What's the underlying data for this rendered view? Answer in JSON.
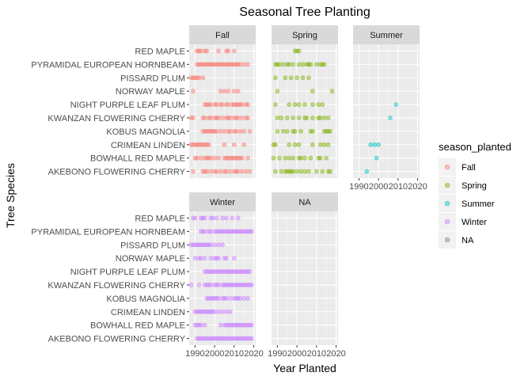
{
  "chart_data": {
    "type": "scatter",
    "title": "Seasonal Tree Planting",
    "xlabel": "Year Planted",
    "ylabel": "Tree Species",
    "xlim": [
      1987,
      2021
    ],
    "x_ticks": [
      1990,
      2000,
      2010,
      2020
    ],
    "categories": [
      "RED MAPLE",
      "PYRAMIDAL EUROPEAN HORNBEAM",
      "PISSARD PLUM",
      "NORWAY MAPLE",
      "NIGHT PURPLE LEAF PLUM",
      "KWANZAN FLOWERING CHERRY",
      "KOBUS MAGNOLIA",
      "CRIMEAN LINDEN",
      "BOWHALL RED MAPLE",
      "AKEBONO FLOWERING CHERRY"
    ],
    "legend": {
      "title": "season_planted",
      "placement": "right",
      "entries": [
        {
          "name": "Fall",
          "color": "#F8766D"
        },
        {
          "name": "Spring",
          "color": "#7CAE00"
        },
        {
          "name": "Summer",
          "color": "#00BFC4"
        },
        {
          "name": "Winter",
          "color": "#C77CFF"
        },
        {
          "name": "NA",
          "color": "#7F7F7F"
        }
      ]
    },
    "grid": true,
    "panels": [
      {
        "name": "Fall",
        "color": "#F8766D",
        "points": {
          "RED MAPLE": [
            1991,
            1992,
            1993,
            1995,
            1996,
            2002,
            2006,
            2007,
            2010
          ],
          "PYRAMIDAL EUROPEAN HORNBEAM": [
            1991,
            1992,
            1993,
            1994,
            1995,
            1996,
            1997,
            1998,
            1999,
            2000,
            2001,
            2002,
            2003,
            2004,
            2005,
            2006,
            2007,
            2008,
            2009,
            2010,
            2011,
            2012,
            2013,
            2015,
            2017
          ],
          "PISSARD PLUM": [
            1988,
            1989,
            1990,
            1991,
            1992,
            1994
          ],
          "NORWAY MAPLE": [
            1989,
            2003,
            2005,
            2007,
            2010,
            2012
          ],
          "NIGHT PURPLE LEAF PLUM": [
            1995,
            1996,
            1997,
            1998,
            2000,
            2001,
            2003,
            2004,
            2006,
            2007,
            2009,
            2010,
            2011,
            2012,
            2013,
            2014,
            2016,
            2017
          ],
          "KWANZAN FLOWERING CHERRY": [
            1988,
            1989,
            1994,
            1995,
            1997,
            1998,
            2000,
            2001,
            2002,
            2004,
            2006,
            2007,
            2008,
            2010,
            2011,
            2012,
            2014,
            2016,
            2017
          ],
          "KOBUS MAGNOLIA": [
            1994,
            1995,
            1996,
            1997,
            1998,
            1999,
            2000,
            2001,
            2003,
            2005,
            2007,
            2008,
            2010,
            2011,
            2013,
            2015,
            2018
          ],
          "CRIMEAN LINDEN": [
            1988,
            1989,
            1990,
            1991,
            1992,
            1993,
            1994,
            1995,
            1996,
            1997,
            2005,
            2010,
            2015
          ],
          "BOWHALL RED MAPLE": [
            1990,
            1991,
            1993,
            1995,
            1996,
            1997,
            1998,
            2000,
            2002,
            2005,
            2006,
            2007,
            2008,
            2009,
            2010,
            2011,
            2012,
            2013,
            2014,
            2017
          ],
          "AKEBONO FLOWERING CHERRY": [
            1989,
            1994,
            1995,
            1996,
            1998,
            2000,
            2001,
            2003,
            2005,
            2006,
            2008,
            2010,
            2011,
            2012,
            2014,
            2016,
            2018
          ]
        }
      },
      {
        "name": "Spring",
        "color": "#7CAE00",
        "points": {
          "RED MAPLE": [
            1999,
            2000,
            2001
          ],
          "PYRAMIDAL EUROPEAN HORNBEAM": [
            1989,
            1990,
            1991,
            1993,
            1995,
            1996,
            1998,
            2001,
            2003,
            2005,
            2006,
            2007,
            2010,
            2012,
            2013,
            2014
          ],
          "PISSARD PLUM": [
            1989,
            1994,
            1997,
            2000,
            2003,
            2006
          ],
          "NORWAY MAPLE": [
            1990,
            2008,
            2018
          ],
          "NIGHT PURPLE LEAF PLUM": [
            1989,
            1996,
            1999,
            2001,
            2004,
            2008,
            2011,
            2013
          ],
          "KWANZAN FLOWERING CHERRY": [
            1990,
            1992,
            1995,
            1998,
            2001,
            2004,
            2005,
            2008,
            2011,
            2012,
            2014,
            2016
          ],
          "KOBUS MAGNOLIA": [
            1990,
            1993,
            1995,
            1998,
            1999,
            2002,
            2007,
            2008,
            2014,
            2015,
            2016,
            2017
          ],
          "CRIMEAN LINDEN": [
            1988,
            1989,
            1996,
            1999,
            2001,
            2008,
            2012,
            2014,
            2016
          ],
          "BOWHALL RED MAPLE": [
            1988,
            1991,
            1994,
            1996,
            1998,
            2001,
            2002,
            2004,
            2007,
            2011,
            2012,
            2015
          ],
          "AKEBONO FLOWERING CHERRY": [
            1989,
            1992,
            1994,
            1995,
            1996,
            1997,
            1998,
            2000,
            2002,
            2004,
            2006,
            2010,
            2013,
            2016,
            2017
          ]
        }
      },
      {
        "name": "Summer",
        "color": "#00BFC4",
        "points": {
          "NIGHT PURPLE LEAF PLUM": [
            2009
          ],
          "KWANZAN FLOWERING CHERRY": [
            2006
          ],
          "CRIMEAN LINDEN": [
            1996,
            1998,
            2000
          ],
          "BOWHALL RED MAPLE": [
            1999
          ],
          "AKEBONO FLOWERING CHERRY": [
            1994
          ]
        }
      },
      {
        "name": "Winter",
        "color": "#C77CFF",
        "points": {
          "RED MAPLE": [
            1989,
            1990,
            1993,
            1994,
            1995,
            1998,
            1999,
            2001,
            2004,
            2006,
            2009,
            2012
          ],
          "PYRAMIDAL EUROPEAN HORNBEAM": [
            1993,
            1994,
            1995,
            1997,
            1998,
            2000,
            2001,
            2002,
            2003,
            2004,
            2005,
            2006,
            2007,
            2008,
            2009,
            2010,
            2011,
            2012,
            2013,
            2014,
            2015,
            2016,
            2017,
            2018,
            2019
          ],
          "PISSARD PLUM": [
            1988,
            1989,
            1990,
            1991,
            1992,
            1993,
            1994,
            1995,
            1996,
            1997,
            1998,
            2000,
            2002,
            2004
          ],
          "NORWAY MAPLE": [
            1990,
            1992,
            1993,
            1995,
            1998,
            2000,
            2001,
            2002,
            2005,
            2006,
            2010
          ],
          "NIGHT PURPLE LEAF PLUM": [
            1995,
            1996,
            1997,
            1998,
            1999,
            2000,
            2001,
            2002,
            2003,
            2004,
            2005,
            2006,
            2007,
            2008,
            2009,
            2010,
            2011,
            2012,
            2013,
            2014,
            2015,
            2016,
            2017,
            2018
          ],
          "KWANZAN FLOWERING CHERRY": [
            1988,
            1992,
            1995,
            1996,
            1997,
            1998,
            2000,
            2001,
            2002,
            2004,
            2005,
            2006,
            2007,
            2008,
            2009,
            2010,
            2011,
            2012,
            2013,
            2014,
            2015,
            2016,
            2017,
            2018,
            2019
          ],
          "KOBUS MAGNOLIA": [
            1996,
            1997,
            1998,
            1999,
            2000,
            2001,
            2002,
            2004,
            2005,
            2006,
            2008,
            2010,
            2011,
            2012,
            2013,
            2015,
            2017
          ],
          "CRIMEAN LINDEN": [
            1990,
            1991,
            1992,
            1993,
            1994,
            1995,
            1996,
            1997,
            1998,
            1999,
            2000,
            2002,
            2004,
            2006,
            2008
          ],
          "BOWHALL RED MAPLE": [
            1990,
            1991,
            1992,
            1993,
            1995,
            2003,
            2005,
            2006,
            2007,
            2008,
            2009,
            2010,
            2011,
            2012,
            2013,
            2014,
            2015,
            2016,
            2017,
            2018,
            2019
          ],
          "AKEBONO FLOWERING CHERRY": [
            1991,
            1992,
            1993,
            1994,
            1995,
            1996,
            1997,
            1998,
            1999,
            2000,
            2001,
            2002,
            2003,
            2004,
            2005,
            2006,
            2007,
            2008,
            2009,
            2010,
            2011,
            2012,
            2013,
            2014,
            2015,
            2016,
            2017,
            2018,
            2019
          ]
        }
      },
      {
        "name": "NA",
        "color": "#7F7F7F",
        "points": {}
      }
    ]
  }
}
